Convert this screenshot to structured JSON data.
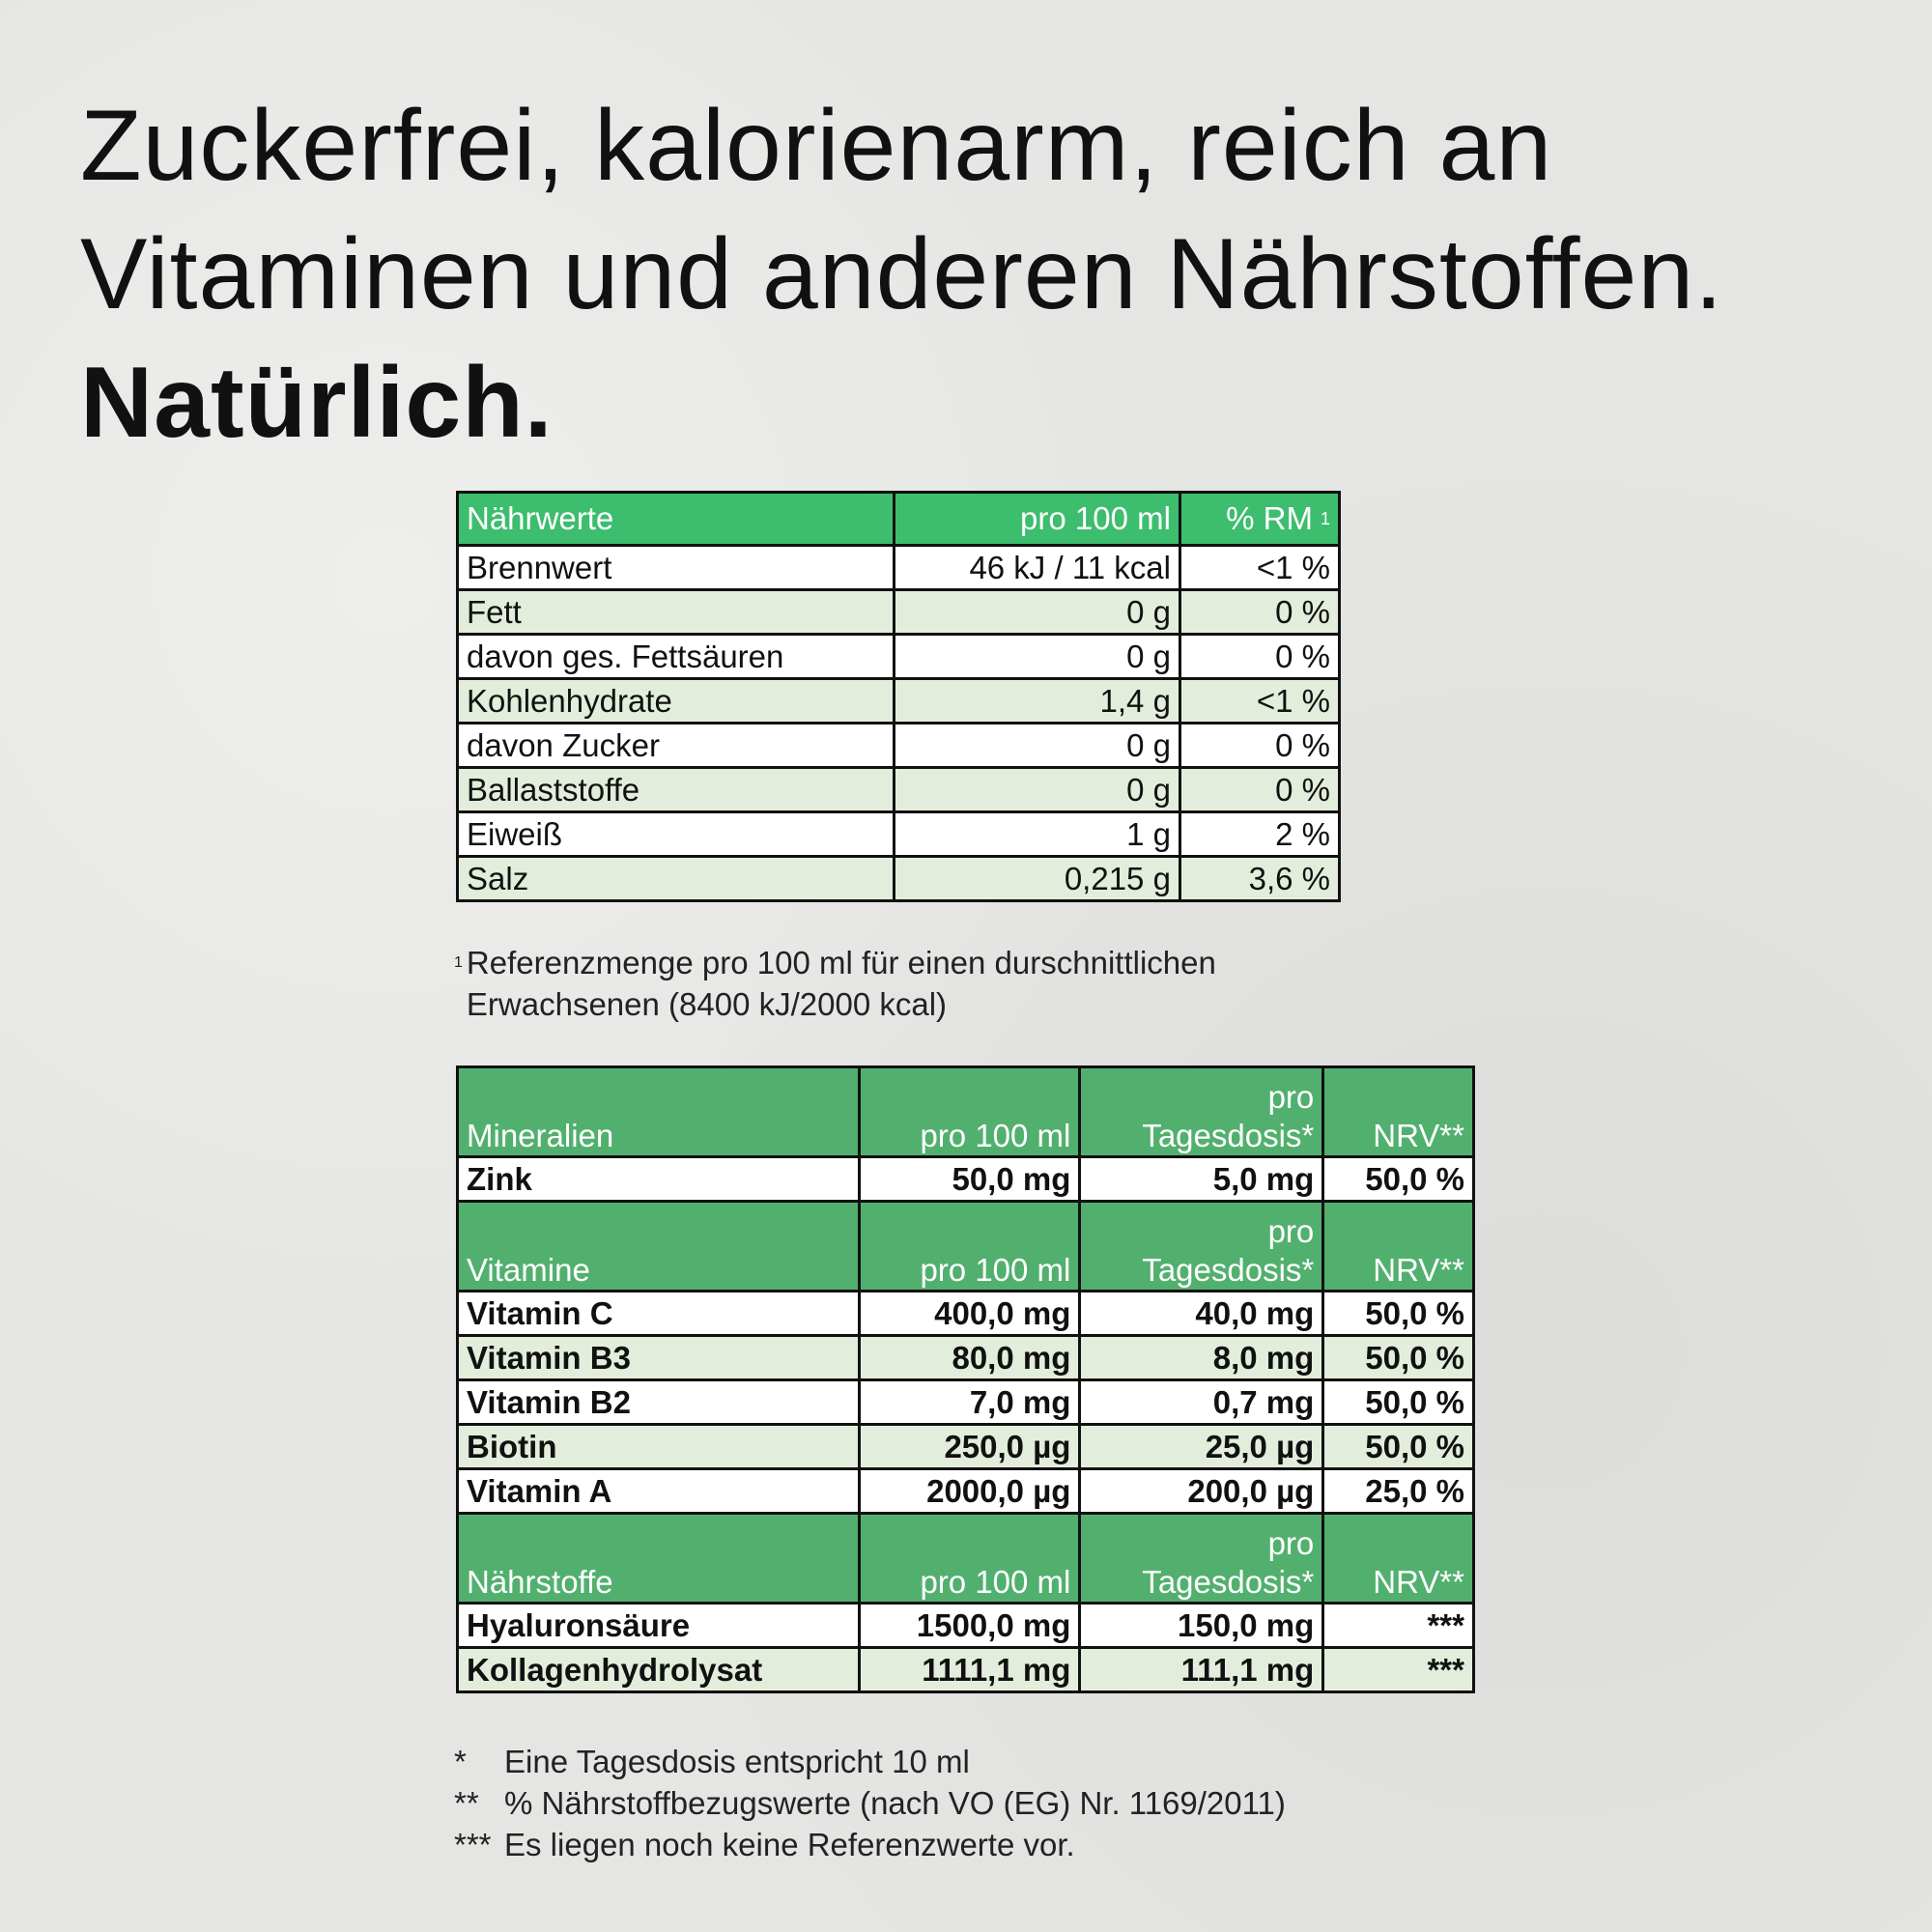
{
  "header": {
    "title_lines": [
      "Zuckerfrei, kalorienarm, reich an",
      "Vitaminen und anderen Nährstoffen."
    ],
    "title_bold": "Natürlich."
  },
  "table1": {
    "header": [
      "Nährwerte",
      "pro 100 ml",
      "% RM"
    ],
    "header_sup": "1",
    "rows": [
      [
        "Brennwert",
        "46 kJ / 11 kcal",
        "<1 %"
      ],
      [
        "Fett",
        "0 g",
        "0 %"
      ],
      [
        "davon ges. Fettsäuren",
        "0 g",
        "0 %"
      ],
      [
        "Kohlenhydrate",
        "1,4 g",
        "<1 %"
      ],
      [
        "davon Zucker",
        "0 g",
        "0 %"
      ],
      [
        "Ballaststoffe",
        "0 g",
        "0 %"
      ],
      [
        "Eiweiß",
        "1 g",
        "2 %"
      ],
      [
        "Salz",
        "0,215 g",
        "3,6 %"
      ]
    ]
  },
  "footnote1": {
    "marker": "1",
    "text": "Referenzmenge pro 100 ml für einen durschnittlichen Erwachsenen (8400 kJ/2000 kcal)"
  },
  "table2": {
    "sections": [
      {
        "header": [
          "Mineralien",
          "pro 100 ml",
          "pro\nTagesdosis*",
          "NRV**"
        ],
        "rows": [
          [
            "Zink",
            "50,0 mg",
            "5,0 mg",
            "50,0 %"
          ]
        ]
      },
      {
        "header": [
          "Vitamine",
          "pro 100 ml",
          "pro\nTagesdosis*",
          "NRV**"
        ],
        "rows": [
          [
            "Vitamin C",
            "400,0 mg",
            "40,0 mg",
            "50,0 %"
          ],
          [
            "Vitamin B3",
            "80,0 mg",
            "8,0 mg",
            "50,0 %"
          ],
          [
            "Vitamin B2",
            "7,0 mg",
            "0,7 mg",
            "50,0 %"
          ],
          [
            "Biotin",
            "250,0 µg",
            "25,0 µg",
            "50,0 %"
          ],
          [
            "Vitamin A",
            "2000,0 µg",
            "200,0 µg",
            "25,0 %"
          ]
        ]
      },
      {
        "header": [
          "Nährstoffe",
          "pro 100 ml",
          "pro\nTagesdosis*",
          "NRV**"
        ],
        "rows": [
          [
            "Hyaluronsäure",
            "1500,0 mg",
            "150,0 mg",
            "***"
          ],
          [
            "Kollagenhydrolysat",
            "1111,1 mg",
            "111,1 mg",
            "***"
          ]
        ]
      }
    ]
  },
  "footnotes": [
    {
      "marker": "*",
      "text": "Eine Tagesdosis entspricht 10 ml"
    },
    {
      "marker": "**",
      "text": "% Nährstoffbezugswerte (nach VO (EG) Nr. 1169/2011)"
    },
    {
      "marker": "***",
      "text": "Es liegen noch keine Referenzwerte vor."
    }
  ]
}
